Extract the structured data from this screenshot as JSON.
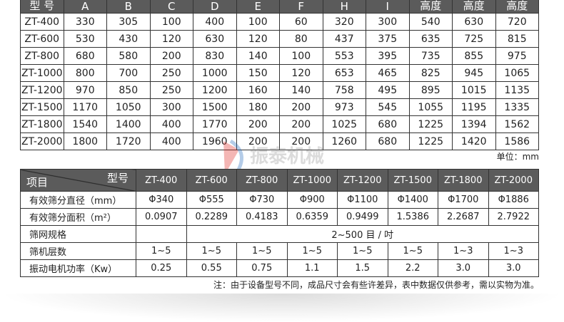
{
  "dims_table": {
    "headers": [
      "型 号",
      "A",
      "B",
      "C",
      "D",
      "E",
      "F",
      "H",
      "I",
      "高度",
      "高度",
      "高度"
    ],
    "rows": [
      [
        "ZT-400",
        "330",
        "305",
        "100",
        "400",
        "100",
        "60",
        "320",
        "300",
        "540",
        "630",
        "720"
      ],
      [
        "ZT-600",
        "530",
        "430",
        "120",
        "630",
        "120",
        "80",
        "437",
        "375",
        "635",
        "725",
        "815"
      ],
      [
        "ZT-800",
        "680",
        "580",
        "200",
        "830",
        "140",
        "100",
        "553",
        "395",
        "735",
        "855",
        "975"
      ],
      [
        "ZT-1000",
        "800",
        "700",
        "250",
        "1000",
        "150",
        "120",
        "653",
        "465",
        "825",
        "945",
        "1065"
      ],
      [
        "ZT-1200",
        "970",
        "850",
        "250",
        "1200",
        "160",
        "140",
        "758",
        "495",
        "895",
        "1015",
        "1135"
      ],
      [
        "ZT-1500",
        "1170",
        "1050",
        "300",
        "1500",
        "180",
        "200",
        "973",
        "545",
        "1055",
        "1195",
        "1335"
      ],
      [
        "ZT-1800",
        "1540",
        "1400",
        "400",
        "1770",
        "200",
        "200",
        "1025",
        "680",
        "1225",
        "1394",
        "1562"
      ],
      [
        "ZT-2000",
        "1800",
        "1720",
        "400",
        "1960",
        "200",
        "200",
        "1260",
        "680",
        "1225",
        "1420",
        "1586"
      ]
    ],
    "unit": "单位：mm"
  },
  "spec_table": {
    "corner_top": "型号",
    "corner_bottom": "项目",
    "models": [
      "ZT-400",
      "ZT-600",
      "ZT-800",
      "ZT-1000",
      "ZT-1200",
      "ZT-1500",
      "ZT-1800",
      "ZT-2000"
    ],
    "rows": [
      {
        "label": "有效筛分直径（mm）",
        "values": [
          "Φ340",
          "Φ555",
          "Φ730",
          "Φ900",
          "Φ1100",
          "Φ1400",
          "Φ1700",
          "Φ1886"
        ]
      },
      {
        "label": "有效筛分面积（m²）",
        "values": [
          "0.0907",
          "0.2289",
          "0.4183",
          "0.6359",
          "0.9499",
          "1.5386",
          "2.2687",
          "2.7922"
        ]
      },
      {
        "label": "筛网规格",
        "merged": "2~500 目 / 吋"
      },
      {
        "label": "筛机层数",
        "values": [
          "1~5",
          "1~5",
          "1~5",
          "1~5",
          "1~5",
          "1~5",
          "1~3",
          "1~3"
        ]
      },
      {
        "label": "振动电机功率（Kw）",
        "values": [
          "0.25",
          "0.55",
          "0.75",
          "1.1",
          "1.5",
          "2.2",
          "3.0",
          "3.0"
        ]
      }
    ],
    "note": "注：由于设备型号不同，成品尺寸会有些许差异，表中数据仅供参考，需以实物为准。"
  },
  "watermark": {
    "text": "振泰机械",
    "sub": "ZHENTAI MCHANICAL",
    "colors": [
      "#e0302a",
      "#2a6fc0"
    ]
  }
}
